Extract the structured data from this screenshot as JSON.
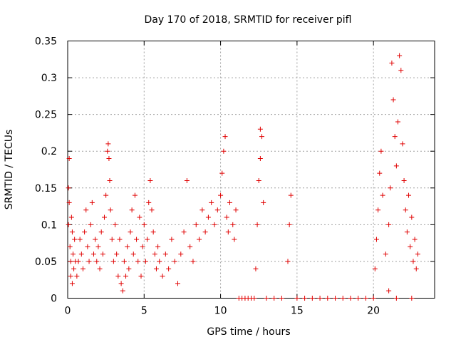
{
  "chart_data": {
    "type": "scatter",
    "title": "Day 170 of 2018, SRMTID for receiver pifl",
    "xlabel": "GPS time / hours",
    "ylabel": "SRMTID / TECUs",
    "xlim": [
      0,
      24
    ],
    "ylim": [
      0,
      0.35
    ],
    "xticks": [
      0,
      5,
      10,
      15,
      20
    ],
    "yticks": [
      0,
      0.05,
      0.1,
      0.15,
      0.2,
      0.25,
      0.3,
      0.35
    ],
    "ytick_labels": [
      "0",
      "0.05",
      "0.1",
      "0.15",
      "0.2",
      "0.25",
      "0.3",
      "0.35"
    ],
    "grid": true,
    "marker": "+",
    "color": "#e00000",
    "series": [
      {
        "name": "SRMTID",
        "points": [
          [
            0.05,
            0.15
          ],
          [
            0.1,
            0.13
          ],
          [
            0.15,
            0.07
          ],
          [
            0.2,
            0.05
          ],
          [
            0.25,
            0.11
          ],
          [
            0.3,
            0.09
          ],
          [
            0.35,
            0.06
          ],
          [
            0.4,
            0.04
          ],
          [
            0.1,
            0.19
          ],
          [
            0.2,
            0.03
          ],
          [
            0.3,
            0.02
          ],
          [
            0.45,
            0.08
          ],
          [
            0.5,
            0.05
          ],
          [
            0.05,
            0.1
          ],
          [
            0.6,
            0.03
          ],
          [
            0.7,
            0.05
          ],
          [
            0.8,
            0.08
          ],
          [
            0.9,
            0.06
          ],
          [
            1.0,
            0.04
          ],
          [
            1.1,
            0.09
          ],
          [
            1.2,
            0.12
          ],
          [
            1.3,
            0.07
          ],
          [
            1.4,
            0.05
          ],
          [
            1.5,
            0.1
          ],
          [
            1.6,
            0.13
          ],
          [
            1.7,
            0.06
          ],
          [
            1.8,
            0.08
          ],
          [
            1.9,
            0.05
          ],
          [
            2.0,
            0.07
          ],
          [
            2.1,
            0.04
          ],
          [
            2.2,
            0.09
          ],
          [
            2.3,
            0.06
          ],
          [
            2.4,
            0.11
          ],
          [
            2.5,
            0.14
          ],
          [
            2.6,
            0.2
          ],
          [
            2.65,
            0.21
          ],
          [
            2.7,
            0.19
          ],
          [
            2.75,
            0.16
          ],
          [
            2.8,
            0.12
          ],
          [
            2.9,
            0.08
          ],
          [
            3.0,
            0.05
          ],
          [
            3.1,
            0.1
          ],
          [
            3.2,
            0.06
          ],
          [
            3.3,
            0.03
          ],
          [
            3.4,
            0.08
          ],
          [
            3.5,
            0.02
          ],
          [
            3.6,
            0.01
          ],
          [
            3.7,
            0.05
          ],
          [
            3.8,
            0.03
          ],
          [
            3.9,
            0.07
          ],
          [
            4.0,
            0.04
          ],
          [
            4.1,
            0.09
          ],
          [
            4.2,
            0.12
          ],
          [
            4.3,
            0.06
          ],
          [
            4.4,
            0.14
          ],
          [
            4.5,
            0.08
          ],
          [
            4.6,
            0.05
          ],
          [
            4.7,
            0.11
          ],
          [
            4.8,
            0.03
          ],
          [
            4.9,
            0.07
          ],
          [
            5.0,
            0.1
          ],
          [
            5.1,
            0.05
          ],
          [
            5.2,
            0.08
          ],
          [
            5.3,
            0.13
          ],
          [
            5.4,
            0.16
          ],
          [
            5.5,
            0.12
          ],
          [
            5.6,
            0.09
          ],
          [
            5.7,
            0.06
          ],
          [
            5.8,
            0.04
          ],
          [
            5.9,
            0.07
          ],
          [
            6.0,
            0.05
          ],
          [
            6.2,
            0.03
          ],
          [
            6.4,
            0.06
          ],
          [
            6.6,
            0.04
          ],
          [
            6.8,
            0.08
          ],
          [
            7.0,
            0.05
          ],
          [
            7.2,
            0.02
          ],
          [
            7.4,
            0.06
          ],
          [
            7.6,
            0.09
          ],
          [
            7.8,
            0.16
          ],
          [
            8.0,
            0.07
          ],
          [
            8.2,
            0.05
          ],
          [
            8.4,
            0.1
          ],
          [
            8.6,
            0.08
          ],
          [
            8.8,
            0.12
          ],
          [
            9.0,
            0.09
          ],
          [
            9.2,
            0.11
          ],
          [
            9.4,
            0.13
          ],
          [
            9.6,
            0.1
          ],
          [
            9.8,
            0.12
          ],
          [
            10.0,
            0.14
          ],
          [
            10.1,
            0.17
          ],
          [
            10.2,
            0.2
          ],
          [
            10.3,
            0.22
          ],
          [
            10.4,
            0.11
          ],
          [
            10.5,
            0.09
          ],
          [
            10.6,
            0.13
          ],
          [
            10.8,
            0.1
          ],
          [
            10.9,
            0.08
          ],
          [
            11.0,
            0.12
          ],
          [
            11.2,
            0.0
          ],
          [
            11.4,
            0.0
          ],
          [
            11.6,
            0.0
          ],
          [
            11.8,
            0.0
          ],
          [
            12.0,
            0.0
          ],
          [
            12.2,
            0.0
          ],
          [
            12.3,
            0.04
          ],
          [
            12.4,
            0.1
          ],
          [
            12.5,
            0.16
          ],
          [
            12.6,
            0.19
          ],
          [
            12.7,
            0.22
          ],
          [
            12.8,
            0.13
          ],
          [
            12.6,
            0.23
          ],
          [
            13.0,
            0.0
          ],
          [
            13.5,
            0.0
          ],
          [
            14.0,
            0.0
          ],
          [
            14.4,
            0.05
          ],
          [
            14.5,
            0.1
          ],
          [
            14.6,
            0.14
          ],
          [
            15.0,
            0.0
          ],
          [
            15.5,
            0.0
          ],
          [
            16.0,
            0.0
          ],
          [
            16.5,
            0.0
          ],
          [
            17.0,
            0.0
          ],
          [
            17.5,
            0.0
          ],
          [
            18.0,
            0.0
          ],
          [
            18.5,
            0.0
          ],
          [
            19.0,
            0.0
          ],
          [
            19.5,
            0.0
          ],
          [
            20.0,
            0.0
          ],
          [
            20.1,
            0.04
          ],
          [
            20.2,
            0.08
          ],
          [
            20.3,
            0.12
          ],
          [
            20.4,
            0.17
          ],
          [
            20.5,
            0.2
          ],
          [
            20.6,
            0.14
          ],
          [
            20.8,
            0.06
          ],
          [
            21.0,
            0.1
          ],
          [
            21.1,
            0.15
          ],
          [
            21.2,
            0.32
          ],
          [
            21.3,
            0.27
          ],
          [
            21.4,
            0.22
          ],
          [
            21.5,
            0.18
          ],
          [
            21.6,
            0.24
          ],
          [
            21.7,
            0.33
          ],
          [
            21.8,
            0.31
          ],
          [
            21.9,
            0.21
          ],
          [
            22.0,
            0.16
          ],
          [
            22.1,
            0.12
          ],
          [
            22.2,
            0.09
          ],
          [
            22.3,
            0.14
          ],
          [
            22.4,
            0.07
          ],
          [
            22.5,
            0.11
          ],
          [
            22.6,
            0.05
          ],
          [
            22.7,
            0.08
          ],
          [
            22.8,
            0.04
          ],
          [
            22.9,
            0.06
          ],
          [
            21.0,
            0.01
          ],
          [
            21.5,
            0.0
          ],
          [
            22.5,
            0.0
          ]
        ]
      }
    ]
  }
}
